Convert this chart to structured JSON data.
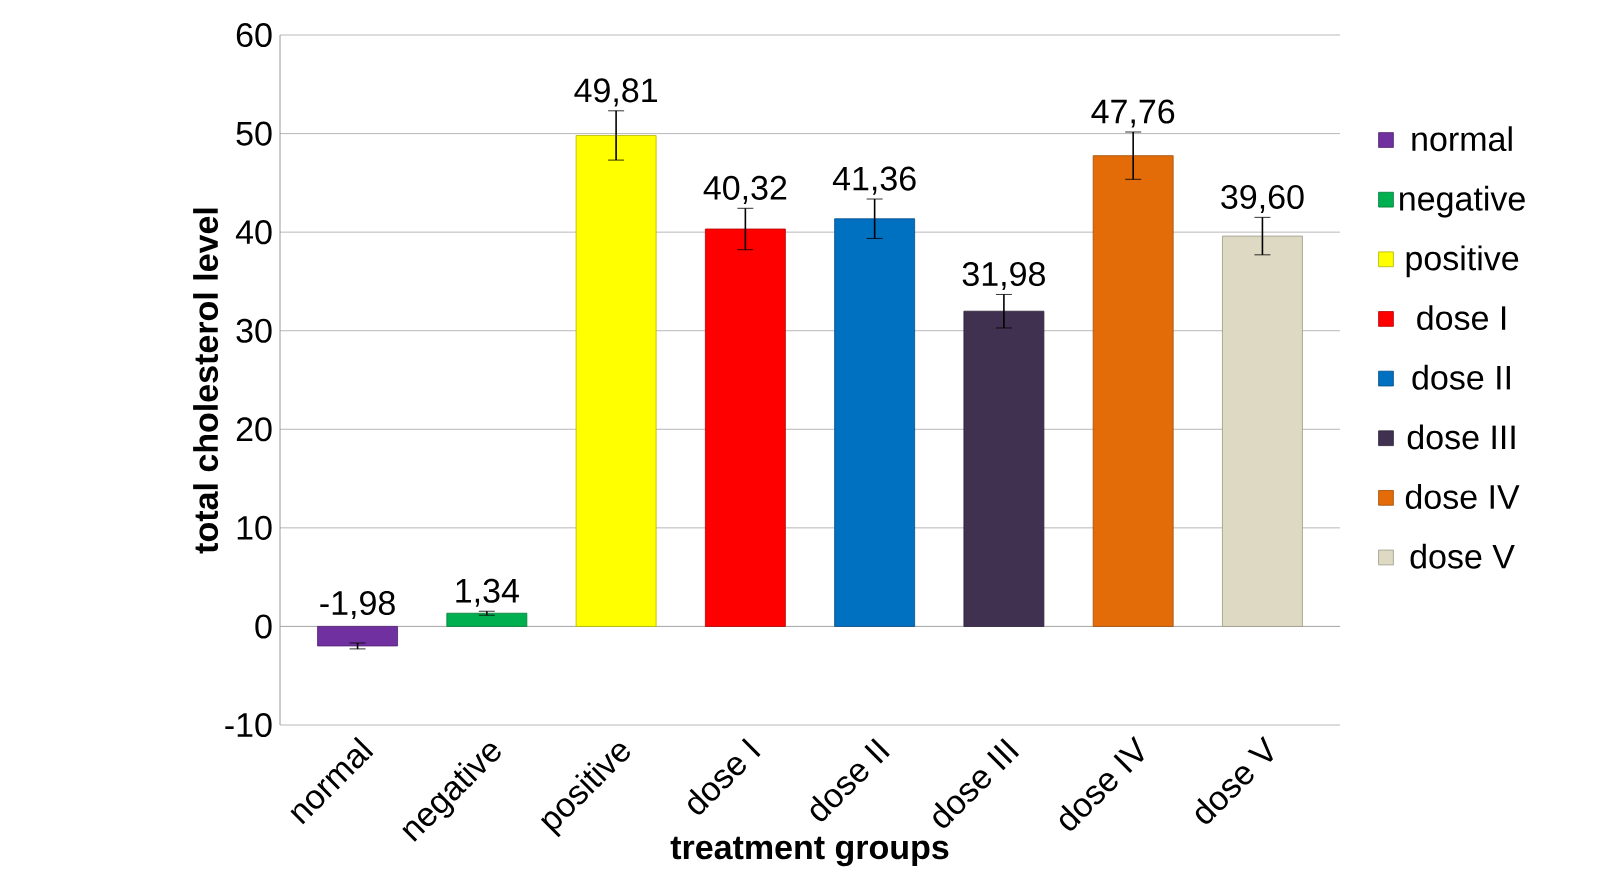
{
  "chart_data": {
    "type": "bar",
    "xlabel": "treatment groups",
    "ylabel": "total cholesterol level",
    "categories": [
      "normal",
      "negative",
      "positive",
      "dose I",
      "dose II",
      "dose III",
      "dose IV",
      "dose V"
    ],
    "series": [
      {
        "name": "normal",
        "color": "#7030a0",
        "values": [
          -1.98,
          null,
          null,
          null,
          null,
          null,
          null,
          null
        ],
        "errors": [
          0.3,
          null,
          null,
          null,
          null,
          null,
          null,
          null
        ],
        "value_labels": [
          "-1,98",
          null,
          null,
          null,
          null,
          null,
          null,
          null
        ]
      },
      {
        "name": "negative",
        "color": "#00b050",
        "values": [
          null,
          1.34,
          null,
          null,
          null,
          null,
          null,
          null
        ],
        "errors": [
          null,
          0.2,
          null,
          null,
          null,
          null,
          null,
          null
        ],
        "value_labels": [
          null,
          "1,34",
          null,
          null,
          null,
          null,
          null,
          null
        ]
      },
      {
        "name": "positive",
        "color": "#ffff00",
        "values": [
          null,
          null,
          49.81,
          null,
          null,
          null,
          null,
          null
        ],
        "errors": [
          null,
          null,
          2.5,
          null,
          null,
          null,
          null,
          null
        ],
        "value_labels": [
          null,
          null,
          "49,81",
          null,
          null,
          null,
          null,
          null
        ]
      },
      {
        "name": "dose I",
        "color": "#ff0000",
        "values": [
          null,
          null,
          null,
          40.32,
          null,
          null,
          null,
          null
        ],
        "errors": [
          null,
          null,
          null,
          2.1,
          null,
          null,
          null,
          null
        ],
        "value_labels": [
          null,
          null,
          null,
          "40,32",
          null,
          null,
          null,
          null
        ]
      },
      {
        "name": "dose II",
        "color": "#0070c0",
        "values": [
          null,
          null,
          null,
          null,
          41.36,
          null,
          null,
          null
        ],
        "errors": [
          null,
          null,
          null,
          null,
          2.0,
          null,
          null,
          null
        ],
        "value_labels": [
          null,
          null,
          null,
          null,
          "41,36",
          null,
          null,
          null
        ]
      },
      {
        "name": "dose III",
        "color": "#403151",
        "values": [
          null,
          null,
          null,
          null,
          null,
          31.98,
          null,
          null
        ],
        "errors": [
          null,
          null,
          null,
          null,
          null,
          1.7,
          null,
          null
        ],
        "value_labels": [
          null,
          null,
          null,
          null,
          null,
          "31,98",
          null,
          null
        ]
      },
      {
        "name": "dose IV",
        "color": "#e36c09",
        "values": [
          null,
          null,
          null,
          null,
          null,
          null,
          47.76,
          null
        ],
        "errors": [
          null,
          null,
          null,
          null,
          null,
          null,
          2.4,
          null
        ],
        "value_labels": [
          null,
          null,
          null,
          null,
          null,
          null,
          "47,76",
          null
        ]
      },
      {
        "name": "dose V",
        "color": "#ddd9c3",
        "values": [
          null,
          null,
          null,
          null,
          null,
          null,
          null,
          39.6
        ],
        "errors": [
          null,
          null,
          null,
          null,
          null,
          null,
          null,
          1.9
        ],
        "value_labels": [
          null,
          null,
          null,
          null,
          null,
          null,
          null,
          "39,60"
        ]
      }
    ],
    "ylim": [
      -10,
      60
    ],
    "yticks": [
      -10,
      0,
      10,
      20,
      30,
      40,
      50,
      60
    ],
    "grid": "y",
    "legend": "right"
  }
}
